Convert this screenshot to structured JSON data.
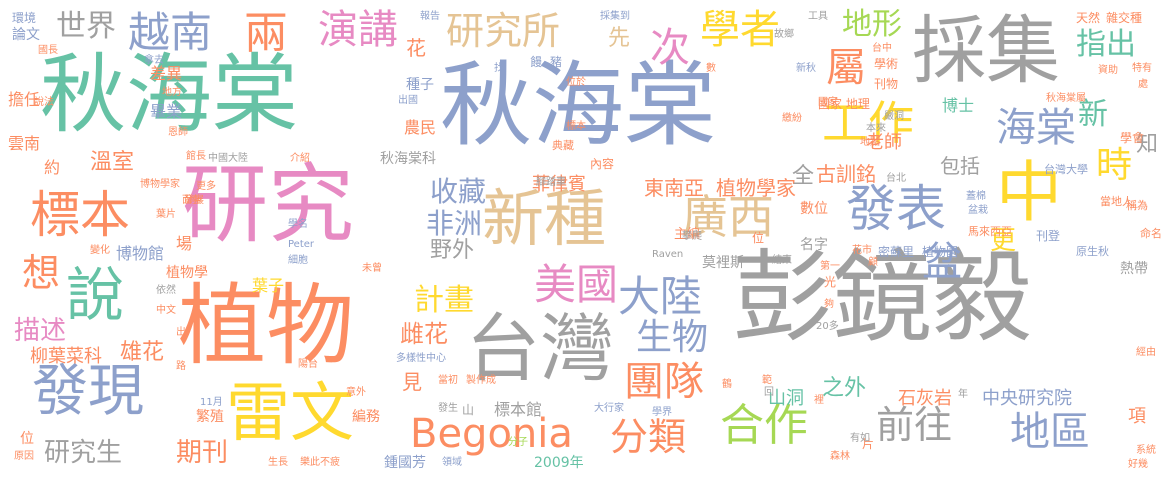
{
  "colors": {
    "gray": "#a0a0a0",
    "blue": "#8da0cb",
    "green": "#66c2a5",
    "orange": "#fc8d62",
    "pink": "#e78ac3",
    "lime": "#a6d854",
    "yellow": "#ffd92f",
    "tan": "#e5c494",
    "lightgray": "#b3b3b3"
  },
  "words": [
    "彭鏡毅",
    "秋海棠",
    "秋海棠",
    "研究",
    "植物",
    "台灣",
    "採集",
    "中",
    "新種",
    "廣西",
    "發表",
    "發現",
    "說",
    "標本",
    "雷文",
    "Begonia",
    "合作",
    "地區",
    "前往",
    "美國",
    "大陸",
    "生物",
    "分類",
    "團隊",
    "研究所",
    "學者",
    "越南",
    "世界",
    "兩",
    "演講",
    "工作",
    "海棠",
    "屬",
    "時",
    "想",
    "盆",
    "指出",
    "地形",
    "次",
    "計畫",
    "非洲",
    "收藏",
    "研究生",
    "期刊",
    "雄花",
    "雌花",
    "描述",
    "柳葉菜科",
    "新",
    "更",
    "植物學家",
    "東南亞",
    "石灰岩",
    "中央研究院",
    "菲律賓",
    "溫室",
    "野外",
    "之外",
    "山洞",
    "標本館",
    "花",
    "知",
    "見",
    "先",
    "全",
    "古訓銘",
    "包括",
    "老師",
    "博士",
    "項",
    "秋海棠科",
    "鍾國芳",
    "2009年",
    "繁殖",
    "編務",
    "莫裡斯",
    "植物園",
    "密蘇里",
    "馬來西亞",
    "葉子",
    "差異",
    "畢業",
    "農民",
    "種子",
    "數位",
    "名字",
    "刊登",
    "主編",
    "博物館",
    "植物學",
    "雲南",
    "擔任",
    "學術",
    "刊物",
    "地點",
    "約",
    "熱帶",
    "雜交種",
    "天然",
    "論文",
    "環境",
    "報告",
    "採集到",
    "工具",
    "國家 地理",
    "學會",
    "台灣大學",
    "當地人",
    "稱為",
    "命名",
    "原生秋",
    "學界",
    "大行家",
    "分子",
    "典藏",
    "森林",
    "片",
    "有如",
    "經由",
    "系統",
    "好幾",
    "原因",
    "生長",
    "樂此不疲",
    "領域",
    "意外",
    "當初",
    "製作成",
    "多樣性中心",
    "Raven",
    "Peter",
    "學名",
    "細胞",
    "變化",
    "發展",
    "葉片",
    "更多",
    "博物學家",
    "中國大陸",
    "介紹",
    "館長",
    "恩師",
    "地方",
    "出國",
    "腳踏車",
    "內容",
    "攀爬",
    "結束",
    "第一",
    "光",
    "夠",
    "20多",
    "花市",
    "台北",
    "蓋棉",
    "盆栽",
    "秋海棠屬",
    "資助",
    "特有",
    "處",
    "台中",
    "故鄉",
    "新秋",
    "數",
    "找",
    "位於",
    "饅",
    "豬",
    "國長",
    "說法",
    "拿去",
    "11月",
    "依然",
    "路",
    "陽台",
    "未曾",
    "中文",
    "山",
    "發生",
    "位",
    "場",
    "位",
    "年",
    "出",
    "回",
    "裡",
    "範",
    "顧",
    "本來",
    "嚴洞",
    "繳紛",
    "國家",
    "標本",
    "面藝",
    "鶴"
  ]
}
